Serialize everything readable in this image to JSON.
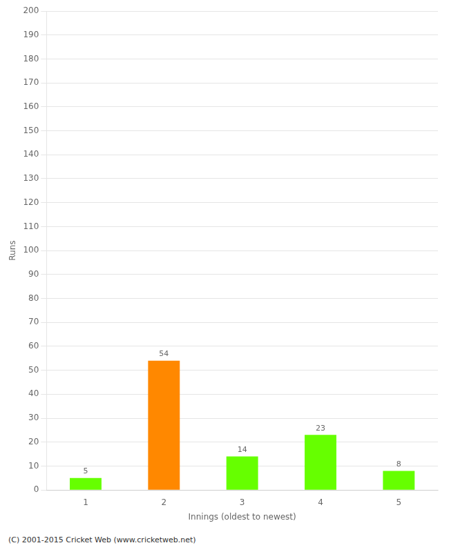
{
  "chart_data": {
    "type": "bar",
    "xlabel": "Innings (oldest to newest)",
    "ylabel": "Runs",
    "categories": [
      1,
      2,
      3,
      4,
      5
    ],
    "values": [
      5,
      54,
      14,
      23,
      8
    ],
    "colors": [
      "#66ff00",
      "#ff8800",
      "#66ff00",
      "#66ff00",
      "#66ff00"
    ],
    "ylim": [
      0,
      200
    ],
    "yticks": [
      0,
      10,
      20,
      30,
      40,
      50,
      60,
      70,
      80,
      90,
      100,
      110,
      120,
      130,
      140,
      150,
      160,
      170,
      180,
      190,
      200
    ],
    "grid": true,
    "data_labels": true,
    "annotations": [
      "(C) 2001-2015 Cricket Web (www.cricketweb.net)"
    ]
  }
}
